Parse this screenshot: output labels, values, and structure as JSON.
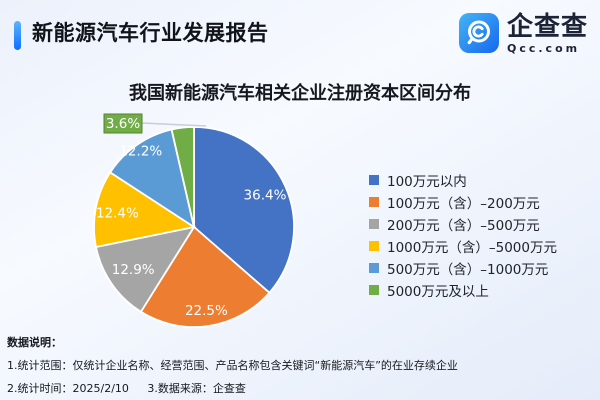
{
  "header": {
    "title": "新能源汽车行业发展报告",
    "accent_color": "#0d6efe",
    "logo": {
      "brand": "企查查",
      "domain": "Qcc.com",
      "icon": "qcc-magnifier-icon",
      "gradient": [
        "#45B5F4",
        "#1766EF"
      ]
    }
  },
  "chart_data": {
    "type": "pie",
    "title": "我国新能源汽车相关企业注册资本区间分布",
    "categories": [
      "100万元以内",
      "100万元（含）–200万元",
      "200万元（含）–500万元",
      "1000万元（含）–5000万元",
      "500万元（含）–1000万元",
      "5000万元及以上"
    ],
    "values": [
      36.4,
      22.5,
      12.9,
      12.4,
      12.2,
      3.6
    ],
    "unit": "%",
    "colors": [
      "#4472C4",
      "#ED7D31",
      "#A5A5A5",
      "#FFC000",
      "#5B9BD5",
      "#70AD47"
    ],
    "callout_border": "#55832f",
    "legend_position": "right",
    "label_format": "percent"
  },
  "notes": {
    "heading": "数据说明：",
    "scope": "1.统计范围：仅统计企业名称、经营范围、产品名称包含关键词“新能源汽车”的在业存续企业",
    "time": "2.统计时间：2025/2/10",
    "source": "3.数据来源：企查查"
  }
}
